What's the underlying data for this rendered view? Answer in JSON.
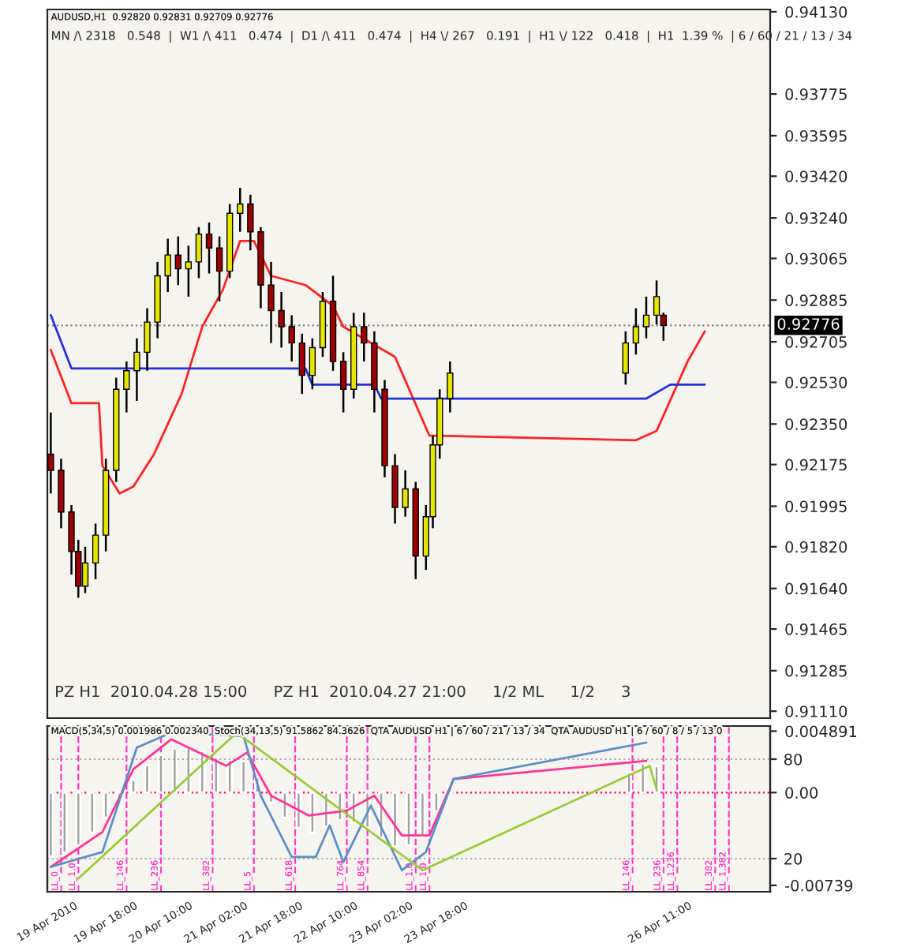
{
  "chart_data": [
    {
      "type": "candlestick",
      "title": "AUDUSD,H1  0.92820 0.92831 0.92709 0.92776",
      "subtitle": "MN /\\ 2318   0.548  |  W1 /\\ 411   0.474  |  D1 /\\ 411   0.474  |  H4 \\/ 267   0.191  |  H1 \\/ 122   0.418  |  H1  1.39 %  | 6 / 60 / 21 / 13 / 34",
      "tick_labels": "y",
      "xlim": [
        "2010-04-19T01:00",
        "2010-04-27T19:00"
      ],
      "ylim": [
        0.9108,
        0.9414
      ],
      "yticks": [
        {
          "value": 0.9413,
          "label": "0.94130"
        },
        {
          "value": 0.93775,
          "label": "0.93775"
        },
        {
          "value": 0.93595,
          "label": "0.93595"
        },
        {
          "value": 0.9342,
          "label": "0.93420"
        },
        {
          "value": 0.9324,
          "label": "0.93240"
        },
        {
          "value": 0.93065,
          "label": "0.93065"
        },
        {
          "value": 0.92885,
          "label": "0.92885"
        },
        {
          "value": 0.92705,
          "label": "0.92705"
        },
        {
          "value": 0.9253,
          "label": "0.92530"
        },
        {
          "value": 0.9235,
          "label": "0.92350"
        },
        {
          "value": 0.92175,
          "label": "0.92175"
        },
        {
          "value": 0.91995,
          "label": "0.91995"
        },
        {
          "value": 0.9182,
          "label": "0.91820"
        },
        {
          "value": 0.9164,
          "label": "0.91640"
        },
        {
          "value": 0.91465,
          "label": "0.91465"
        },
        {
          "value": 0.91285,
          "label": "0.91285"
        },
        {
          "value": 0.9111,
          "label": "0.91110"
        }
      ],
      "series": [
        {
          "x": [
            "2010-04-19T02:00",
            "2010-04-19T05:00",
            "2010-04-19T08:00",
            "2010-04-19T10:00",
            "2010-04-19T12:00",
            "2010-04-19T15:00",
            "2010-04-19T18:00",
            "2010-04-19T21:00",
            "2010-04-20T00:00",
            "2010-04-20T03:00",
            "2010-04-20T06:00",
            "2010-04-20T09:00",
            "2010-04-20T12:00",
            "2010-04-20T15:00",
            "2010-04-20T18:00",
            "2010-04-20T21:00",
            "2010-04-21T00:00",
            "2010-04-21T03:00",
            "2010-04-21T06:00",
            "2010-04-21T09:00",
            "2010-04-21T12:00",
            "2010-04-21T15:00",
            "2010-04-21T18:00",
            "2010-04-21T21:00",
            "2010-04-22T00:00",
            "2010-04-22T03:00",
            "2010-04-22T06:00",
            "2010-04-22T09:00",
            "2010-04-22T12:00",
            "2010-04-22T15:00",
            "2010-04-22T18:00",
            "2010-04-22T21:00",
            "2010-04-23T00:00",
            "2010-04-23T03:00",
            "2010-04-23T06:00",
            "2010-04-23T09:00",
            "2010-04-23T12:00",
            "2010-04-23T15:00",
            "2010-04-23T17:00",
            "2010-04-23T19:00",
            "2010-04-23T22:00",
            "2010-04-26T01:00",
            "2010-04-26T04:00",
            "2010-04-26T07:00",
            "2010-04-26T10:00",
            "2010-04-26T12:00"
          ],
          "ohlc": [
            [
              0.9222,
              0.924,
              0.9205,
              0.9215
            ],
            [
              0.9215,
              0.922,
              0.919,
              0.9197
            ],
            [
              0.9197,
              0.92,
              0.917,
              0.918
            ],
            [
              0.918,
              0.9185,
              0.916,
              0.9165
            ],
            [
              0.9165,
              0.9182,
              0.9162,
              0.9175
            ],
            [
              0.9175,
              0.9192,
              0.9168,
              0.9187
            ],
            [
              0.9187,
              0.922,
              0.918,
              0.9215
            ],
            [
              0.9215,
              0.9255,
              0.921,
              0.925
            ],
            [
              0.925,
              0.9262,
              0.924,
              0.9258
            ],
            [
              0.9258,
              0.9272,
              0.9245,
              0.9266
            ],
            [
              0.9266,
              0.9285,
              0.9258,
              0.9279
            ],
            [
              0.9279,
              0.9305,
              0.9272,
              0.9299
            ],
            [
              0.9299,
              0.9315,
              0.9292,
              0.9308
            ],
            [
              0.9308,
              0.9316,
              0.9295,
              0.9302
            ],
            [
              0.9302,
              0.9312,
              0.929,
              0.9305
            ],
            [
              0.9305,
              0.932,
              0.9298,
              0.9317
            ],
            [
              0.9317,
              0.9322,
              0.93,
              0.9311
            ],
            [
              0.9311,
              0.9316,
              0.9288,
              0.9301
            ],
            [
              0.9301,
              0.933,
              0.9298,
              0.9326
            ],
            [
              0.9326,
              0.9337,
              0.9318,
              0.933
            ],
            [
              0.933,
              0.9334,
              0.931,
              0.9318
            ],
            [
              0.9318,
              0.932,
              0.9285,
              0.9295
            ],
            [
              0.9295,
              0.9305,
              0.927,
              0.9284
            ],
            [
              0.9284,
              0.9292,
              0.9268,
              0.9277
            ],
            [
              0.9277,
              0.9282,
              0.9262,
              0.927
            ],
            [
              0.927,
              0.9274,
              0.9248,
              0.9256
            ],
            [
              0.9256,
              0.9272,
              0.925,
              0.9268
            ],
            [
              0.9268,
              0.9292,
              0.9264,
              0.9288
            ],
            [
              0.9288,
              0.9299,
              0.9258,
              0.9262
            ],
            [
              0.9262,
              0.9266,
              0.924,
              0.925
            ],
            [
              0.925,
              0.9283,
              0.9246,
              0.9277
            ],
            [
              0.9277,
              0.9283,
              0.9262,
              0.927
            ],
            [
              0.927,
              0.9275,
              0.924,
              0.925
            ],
            [
              0.925,
              0.9254,
              0.9212,
              0.9217
            ],
            [
              0.9217,
              0.9222,
              0.9192,
              0.9199
            ],
            [
              0.9199,
              0.9215,
              0.9195,
              0.9207
            ],
            [
              0.9207,
              0.921,
              0.9168,
              0.9178
            ],
            [
              0.9178,
              0.92,
              0.9172,
              0.9195
            ],
            [
              0.9195,
              0.923,
              0.919,
              0.9226
            ],
            [
              0.9226,
              0.925,
              0.922,
              0.9246
            ],
            [
              0.9246,
              0.9262,
              0.924,
              0.9257
            ],
            [
              0.9257,
              0.9275,
              0.9252,
              0.927
            ],
            [
              0.927,
              0.9285,
              0.9265,
              0.9277
            ],
            [
              0.9277,
              0.929,
              0.9272,
              0.9282
            ],
            [
              0.9282,
              0.9297,
              0.9278,
              0.929
            ],
            [
              0.9282,
              0.92831,
              0.92709,
              0.92776
            ]
          ],
          "colors": [
            "#a00000",
            "#a00000",
            "#a00000",
            "#a00000",
            "#e6e600",
            "#e6e600",
            "#e6e600",
            "#e6e600",
            "#e6e600",
            "#e6e600",
            "#e6e600",
            "#e6e600",
            "#e6e600",
            "#a00000",
            "#e6e600",
            "#e6e600",
            "#a00000",
            "#a00000",
            "#e6e600",
            "#e6e600",
            "#a00000",
            "#a00000",
            "#a00000",
            "#a00000",
            "#a00000",
            "#a00000",
            "#e6e600",
            "#e6e600",
            "#a00000",
            "#a00000",
            "#e6e600",
            "#a00000",
            "#a00000",
            "#a00000",
            "#a00000",
            "#e6e600",
            "#a00000",
            "#e6e600",
            "#e6e600",
            "#e6e600",
            "#e6e600",
            "#e6e600",
            "#e6e600",
            "#e6e600",
            "#e6e600",
            "#a00000"
          ]
        },
        {
          "type": "line",
          "color": "#ff2020",
          "x": [
            "2010-04-19T02:00",
            "2010-04-19T08:00",
            "2010-04-19T16:00",
            "2010-04-19T17:00",
            "2010-04-19T22:00",
            "2010-04-20T02:00",
            "2010-04-20T08:00",
            "2010-04-20T16:00",
            "2010-04-20T22:00",
            "2010-04-21T04:00",
            "2010-04-21T09:00",
            "2010-04-21T13:00",
            "2010-04-21T18:00",
            "2010-04-22T04:00",
            "2010-04-22T12:00",
            "2010-04-22T15:00",
            "2010-04-23T06:00",
            "2010-04-23T16:00",
            "2010-04-26T04:00",
            "2010-04-26T10:00",
            "2010-04-26T19:00",
            "2010-04-27T00:00"
          ],
          "values": [
            0.9267,
            0.9244,
            0.9244,
            0.9217,
            0.9205,
            0.9208,
            0.9222,
            0.9248,
            0.9277,
            0.9293,
            0.9314,
            0.9314,
            0.9299,
            0.9295,
            0.9286,
            0.9277,
            0.9264,
            0.923,
            0.9228,
            0.9232,
            0.9262,
            0.9275
          ]
        },
        {
          "type": "line",
          "color": "#2030e0",
          "x": [
            "2010-04-19T02:00",
            "2010-04-19T08:00",
            "2010-04-22T04:00",
            "2010-04-22T06:00",
            "2010-04-23T00:00",
            "2010-04-23T02:00",
            "2010-04-26T07:00",
            "2010-04-26T14:00",
            "2010-04-27T00:00"
          ],
          "values": [
            0.9282,
            0.9259,
            0.9259,
            0.9252,
            0.9252,
            0.9246,
            0.9246,
            0.9252,
            0.9252
          ]
        }
      ],
      "ref_lines": [
        {
          "axis": "y",
          "value": 0.92776,
          "label": "0.92776",
          "color": "#808080",
          "line_style": "dotted"
        }
      ],
      "annotations": [
        "PZ H1  2010.04.28 15:00",
        "PZ H1  2010.04.27 21:00",
        "1/2 ML",
        "1/2",
        "3"
      ]
    },
    {
      "type": "bar",
      "title": "MACD(5,34,5) 0.001986 0.002340  Stoch(34,13,5) 91.5862 84.3626  QTA AUDUSD H1 | 6 / 60 / 21 / 13 / 34  QTA AUDUSD H1 | 6 / 60 / 8 / 5 / 13 0",
      "xlim": [
        "2010-04-19T01:00",
        "2010-04-27T19:00"
      ],
      "xticks": [
        {
          "value": "2010-04-19T01:00",
          "label": "19 Apr 2010"
        },
        {
          "value": "2010-04-19T18:00",
          "label": "19 Apr 18:00"
        },
        {
          "value": "2010-04-20T10:00",
          "label": "20 Apr 10:00"
        },
        {
          "value": "2010-04-21T02:00",
          "label": "21 Apr 02:00"
        },
        {
          "value": "2010-04-21T18:00",
          "label": "21 Apr 18:00"
        },
        {
          "value": "2010-04-22T10:00",
          "label": "22 Apr 10:00"
        },
        {
          "value": "2010-04-23T02:00",
          "label": "23 Apr 02:00"
        },
        {
          "value": "2010-04-23T18:00",
          "label": "23 Apr 18:00"
        },
        {
          "value": "2010-04-26T11:00",
          "label": "26 Apr 11:00"
        }
      ],
      "ylim": [
        -0.0079,
        0.0053
      ],
      "yticks": [
        0.004891,
        {
          "value": 0,
          "label": "0.00"
        },
        -0.00739
      ],
      "y2lim": [
        0,
        100
      ],
      "y2ticks": [
        80,
        20
      ],
      "series": [
        {
          "color": "#a0a0a0",
          "x": [
            "2010-04-19T02:00",
            "2010-04-19T06:00",
            "2010-04-19T10:00",
            "2010-04-19T14:00",
            "2010-04-19T18:00",
            "2010-04-19T22:00",
            "2010-04-20T02:00",
            "2010-04-20T06:00",
            "2010-04-20T10:00",
            "2010-04-20T14:00",
            "2010-04-20T18:00",
            "2010-04-20T22:00",
            "2010-04-21T02:00",
            "2010-04-21T06:00",
            "2010-04-21T10:00",
            "2010-04-21T14:00",
            "2010-04-21T18:00",
            "2010-04-21T22:00",
            "2010-04-22T02:00",
            "2010-04-22T06:00",
            "2010-04-22T10:00",
            "2010-04-22T14:00",
            "2010-04-22T18:00",
            "2010-04-22T22:00",
            "2010-04-23T02:00",
            "2010-04-23T06:00",
            "2010-04-23T10:00",
            "2010-04-23T14:00",
            "2010-04-23T18:00",
            "2010-04-23T22:00",
            "2010-04-26T02:00",
            "2010-04-26T06:00",
            "2010-04-26T10:00"
          ],
          "values": [
            -0.0051,
            -0.0048,
            -0.0042,
            -0.0032,
            -0.002,
            -0.0005,
            0.001,
            0.0022,
            0.003,
            0.0035,
            0.0036,
            0.0033,
            0.0028,
            0.0026,
            0.0025,
            0.0012,
            -0.0008,
            -0.002,
            -0.0028,
            -0.0032,
            -0.0027,
            -0.0022,
            -0.0024,
            -0.0028,
            -0.0036,
            -0.0043,
            -0.0042,
            -0.0035,
            -0.0015,
            0.0005,
            0.0016,
            0.0023,
            0.0021
          ]
        },
        {
          "type": "line",
          "axis": "y2",
          "color": "#ff3399",
          "x": [
            "2010-04-19T02:00",
            "2010-04-19T17:00",
            "2010-04-20T02:00",
            "2010-04-20T13:00",
            "2010-04-21T05:00",
            "2010-04-21T11:00",
            "2010-04-21T18:00",
            "2010-04-22T05:00",
            "2010-04-22T16:00",
            "2010-04-23T00:00",
            "2010-04-23T08:00",
            "2010-04-23T16:00",
            "2010-04-23T23:00",
            "2010-04-26T07:00"
          ],
          "values": [
            15,
            36,
            74,
            92,
            76,
            84,
            58,
            46,
            49,
            58,
            34,
            34,
            68,
            79
          ]
        },
        {
          "type": "line",
          "axis": "y2",
          "color": "#5b8fc7",
          "x": [
            "2010-04-19T02:00",
            "2010-04-19T17:00",
            "2010-04-20T03:00",
            "2010-04-20T13:00",
            "2010-04-21T10:00",
            "2010-04-21T15:00",
            "2010-04-22T00:00",
            "2010-04-22T07:00",
            "2010-04-22T11:00",
            "2010-04-22T15:00",
            "2010-04-22T23:00",
            "2010-04-23T08:00",
            "2010-04-23T15:00",
            "2010-04-23T23:00",
            "2010-04-26T07:00"
          ],
          "values": [
            15,
            24,
            87,
            96,
            94,
            58,
            21,
            21,
            40,
            18,
            52,
            13,
            24,
            68,
            90
          ]
        },
        {
          "type": "line",
          "axis": "y2",
          "color": "#99cc33",
          "x": [
            "2010-04-19T10:00",
            "2010-04-21T08:00",
            "2010-04-23T14:00",
            "2010-04-26T08:00",
            "2010-04-26T10:00"
          ],
          "values": [
            8,
            96,
            13,
            76,
            62
          ]
        }
      ],
      "ref_lines": [
        {
          "axis": "y",
          "value": 0,
          "color": "#ff0066",
          "line_style": "dotted"
        },
        {
          "axis": "y2",
          "value": 80,
          "color": "#aaaaaa",
          "line_style": "dotted"
        },
        {
          "axis": "y2",
          "value": 20,
          "color": "#aaaaaa",
          "line_style": "dotted"
        },
        {
          "axis": "x",
          "value": "2010-04-19T05:00",
          "label": "LL_0",
          "color": "#ff33cc",
          "line_style": "dashed"
        },
        {
          "axis": "x",
          "value": "2010-04-19T10:00",
          "label": "LL_1.0",
          "color": "#ff33cc",
          "line_style": "dashed"
        },
        {
          "axis": "x",
          "value": "2010-04-20T00:00",
          "label": "LL_146",
          "color": "#ff33cc",
          "line_style": "dashed"
        },
        {
          "axis": "x",
          "value": "2010-04-20T10:00",
          "label": "LL_236",
          "color": "#ff33cc",
          "line_style": "dashed"
        },
        {
          "axis": "x",
          "value": "2010-04-21T01:00",
          "label": "LL_382",
          "color": "#ff33cc",
          "line_style": "dashed"
        },
        {
          "axis": "x",
          "value": "2010-04-21T13:00",
          "label": "LL_5",
          "color": "#ff33cc",
          "line_style": "dashed"
        },
        {
          "axis": "x",
          "value": "2010-04-22T01:00",
          "label": "LL_618",
          "color": "#ff33cc",
          "line_style": "dashed"
        },
        {
          "axis": "x",
          "value": "2010-04-22T16:00",
          "label": "LL_764",
          "color": "#ff33cc",
          "line_style": "dashed"
        },
        {
          "axis": "x",
          "value": "2010-04-22T22:00",
          "label": "LL_854",
          "color": "#ff33cc",
          "line_style": "dashed"
        },
        {
          "axis": "x",
          "value": "2010-04-23T12:00",
          "label": "LL_1.0",
          "color": "#ff33cc",
          "line_style": "dashed"
        },
        {
          "axis": "x",
          "value": "2010-04-23T16:00",
          "label": "LL_1.0",
          "color": "#ff33cc",
          "line_style": "dashed"
        },
        {
          "axis": "x",
          "value": "2010-04-26T03:00",
          "label": "LL_146",
          "color": "#ff33cc",
          "line_style": "dashed"
        },
        {
          "axis": "x",
          "value": "2010-04-26T12:00",
          "label": "LL_236",
          "color": "#ff33cc",
          "line_style": "dashed"
        },
        {
          "axis": "x",
          "value": "2010-04-26T16:00",
          "label": "LL_1.236",
          "color": "#ff33cc",
          "line_style": "dashed"
        },
        {
          "axis": "x",
          "value": "2010-04-27T03:00",
          "label": "LL_382",
          "color": "#ff33cc",
          "line_style": "dashed"
        },
        {
          "axis": "x",
          "value": "2010-04-27T07:00",
          "label": "LL_1.382",
          "color": "#ff33cc",
          "line_style": "dashed"
        }
      ]
    }
  ]
}
